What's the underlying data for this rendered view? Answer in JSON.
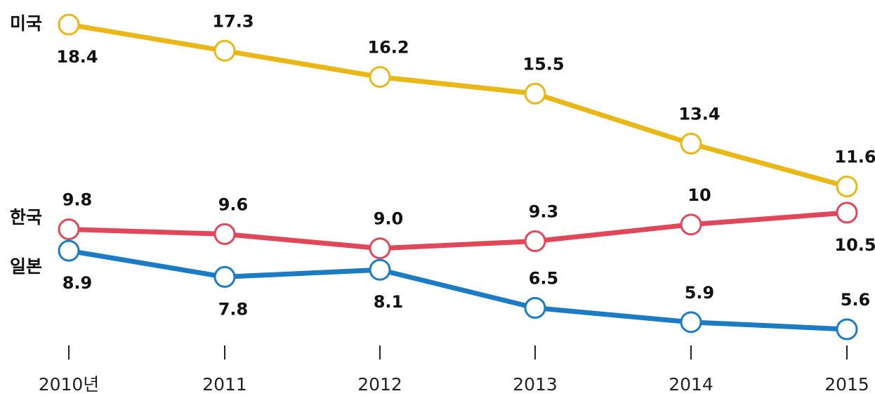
{
  "chart_data": {
    "type": "line",
    "x": [
      "2010년",
      "2011",
      "2012",
      "2013",
      "2014",
      "2015"
    ],
    "ylim": [
      4,
      19
    ],
    "grid": false,
    "series": [
      {
        "name": "미국",
        "color": "#e9b817",
        "values": [
          18.4,
          17.3,
          16.2,
          15.5,
          13.4,
          11.6
        ],
        "labels": [
          "18.4",
          "17.3",
          "16.2",
          "15.5",
          "13.4",
          "11.6"
        ],
        "label_side": [
          "below",
          "above",
          "above",
          "above",
          "above",
          "above"
        ]
      },
      {
        "name": "한국",
        "color": "#e0485a",
        "values": [
          9.8,
          9.6,
          9.0,
          9.3,
          10,
          10.5
        ],
        "labels": [
          "9.8",
          "9.6",
          "9.0",
          "9.3",
          "10",
          "10.5"
        ],
        "label_side": [
          "above",
          "above",
          "above",
          "above",
          "above",
          "below"
        ]
      },
      {
        "name": "일본",
        "color": "#1b7cc4",
        "values": [
          8.9,
          7.8,
          8.1,
          6.5,
          5.9,
          5.6
        ],
        "labels": [
          "8.9",
          "7.8",
          "8.1",
          "6.5",
          "5.9",
          "5.6"
        ],
        "label_side": [
          "below",
          "below",
          "below",
          "above",
          "above",
          "above"
        ]
      }
    ]
  }
}
